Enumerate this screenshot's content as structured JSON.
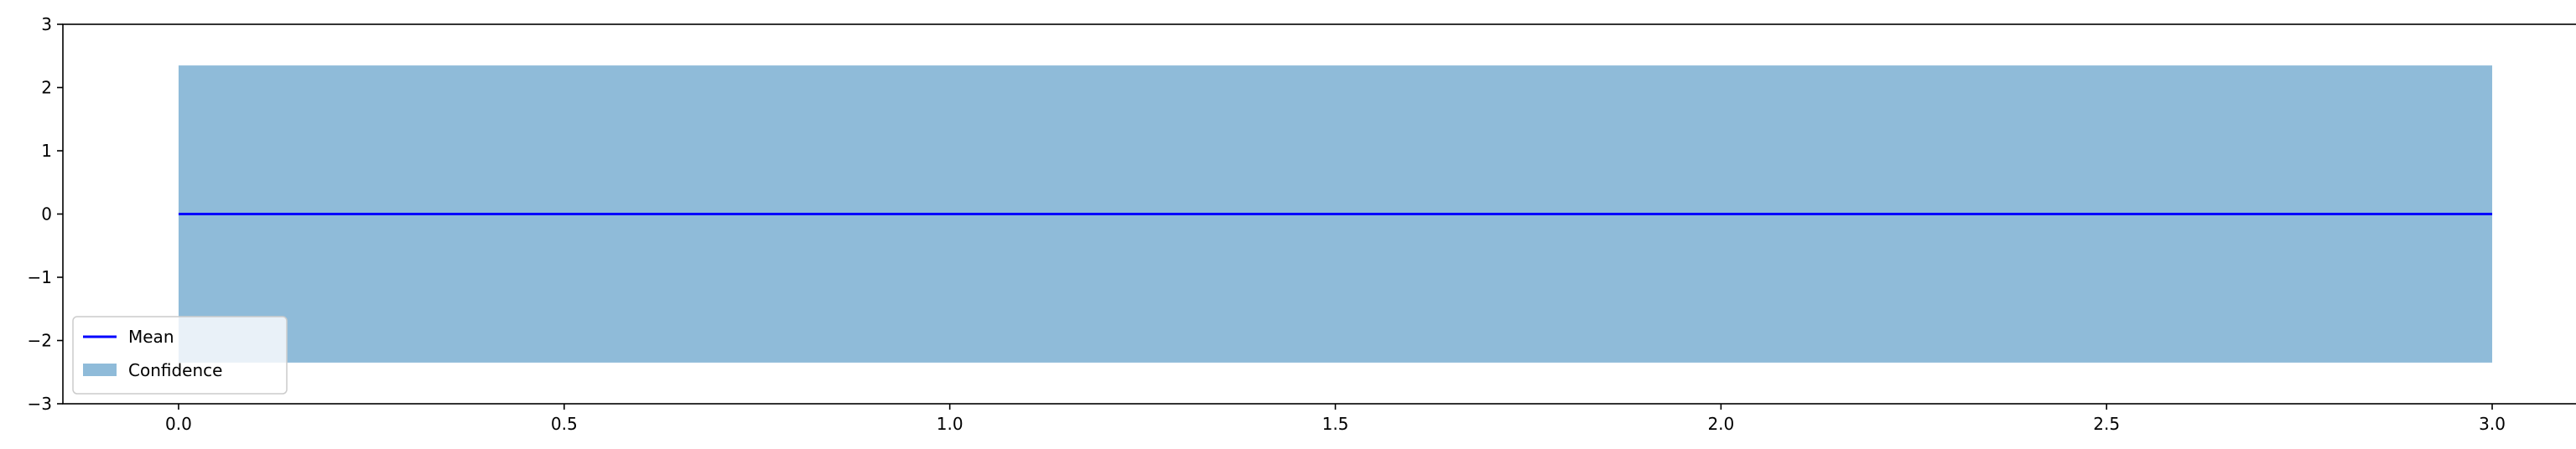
{
  "chart_data": {
    "type": "line",
    "x": [
      0.0,
      3.0
    ],
    "series": [
      {
        "name": "Mean",
        "kind": "line",
        "x": [
          0.0,
          3.0
        ],
        "y": [
          0.0,
          0.0
        ],
        "color": "#0000ff"
      },
      {
        "name": "Confidence",
        "kind": "band",
        "x": [
          0.0,
          3.0
        ],
        "lower": [
          -2.35,
          -2.35
        ],
        "upper": [
          2.35,
          2.35
        ],
        "color": "#1f77b4",
        "alpha": 0.5
      }
    ],
    "xlim": [
      -0.15,
      3.15
    ],
    "ylim": [
      -3,
      3
    ],
    "xticks": [
      0.0,
      0.5,
      1.0,
      1.5,
      2.0,
      2.5,
      3.0
    ],
    "xtick_labels": [
      "0.0",
      "0.5",
      "1.0",
      "1.5",
      "2.0",
      "2.5",
      "3.0"
    ],
    "yticks": [
      -3,
      -2,
      -1,
      0,
      1,
      2,
      3
    ],
    "ytick_labels": [
      "−3",
      "−2",
      "−1",
      "0",
      "1",
      "2",
      "3"
    ],
    "grid": false,
    "legend_position": "lower-left"
  }
}
